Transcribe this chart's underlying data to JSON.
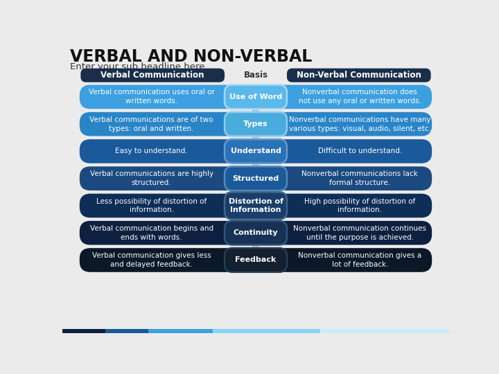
{
  "title": "VERBAL AND NON-VERBAL",
  "subtitle": "Enter your sub headline here",
  "bg_color": "#ebebeb",
  "title_color": "#111111",
  "subtitle_color": "#333333",
  "header": {
    "verbal": "Verbal Communication",
    "basis": "Basis",
    "nonverbal": "Non-Verbal Communication",
    "verbal_color": "#1a2e4a",
    "nonverbal_color": "#1a2e4a",
    "basis_color": "#333333"
  },
  "rows": [
    {
      "basis": "Use of Word",
      "verbal": "Verbal communication uses oral or\nwritten words.",
      "nonverbal": "Nonverbal communication does\nnot use any oral or written words.",
      "row_color": "#3ca0e0",
      "center_color": "#5ab8ea",
      "center_edge": "#a8d8f0",
      "text_color": "#ffffff"
    },
    {
      "basis": "Types",
      "verbal": "Verbal communications are of two\ntypes: oral and written.",
      "nonverbal": "Nonverbal communications have many\nvarious types: visual, audio, silent, etc.",
      "row_color": "#2a85c8",
      "center_color": "#4aacdc",
      "center_edge": "#90ccee",
      "text_color": "#ffffff"
    },
    {
      "basis": "Understand",
      "verbal": "Easy to understand.",
      "nonverbal": "Difficult to understand.",
      "row_color": "#1a5a9a",
      "center_color": "#2a72b8",
      "center_edge": "#6699cc",
      "text_color": "#ffffff"
    },
    {
      "basis": "Structured",
      "verbal": "Verbal communications are highly\nstructured.",
      "nonverbal": "Nonverbal communications lack\nformal structure.",
      "row_color": "#1a4a80",
      "center_color": "#1a5a9a",
      "center_edge": "#5588bb",
      "text_color": "#ffffff"
    },
    {
      "basis": "Distortion of\nInformation",
      "verbal": "Less possibility of distortion of\ninformation.",
      "nonverbal": "High possibility of distortion of\ninformation.",
      "row_color": "#0e2e58",
      "center_color": "#1a3e6a",
      "center_edge": "#446688",
      "text_color": "#ffffff"
    },
    {
      "basis": "Continuity",
      "verbal": "Verbal communication begins and\nends with words.",
      "nonverbal": "Nonverbal communication continues\nuntil the purpose is achieved.",
      "row_color": "#0e2040",
      "center_color": "#163256",
      "center_edge": "#335577",
      "text_color": "#ffffff"
    },
    {
      "basis": "Feedback",
      "verbal": "Verbal communication gives less\nand delayed feedback.",
      "nonverbal": "Nonverbal communication gives a\nlot of feedback.",
      "row_color": "#0a1828",
      "center_color": "#122030",
      "center_edge": "#2a3d50",
      "text_color": "#ffffff"
    }
  ],
  "bottom_bar_colors": [
    "#0e2040",
    "#1a5a9a",
    "#3ca0e0",
    "#87d4f5",
    "#c8eef8"
  ],
  "bottom_bar_widths": [
    80,
    80,
    120,
    200,
    240
  ]
}
